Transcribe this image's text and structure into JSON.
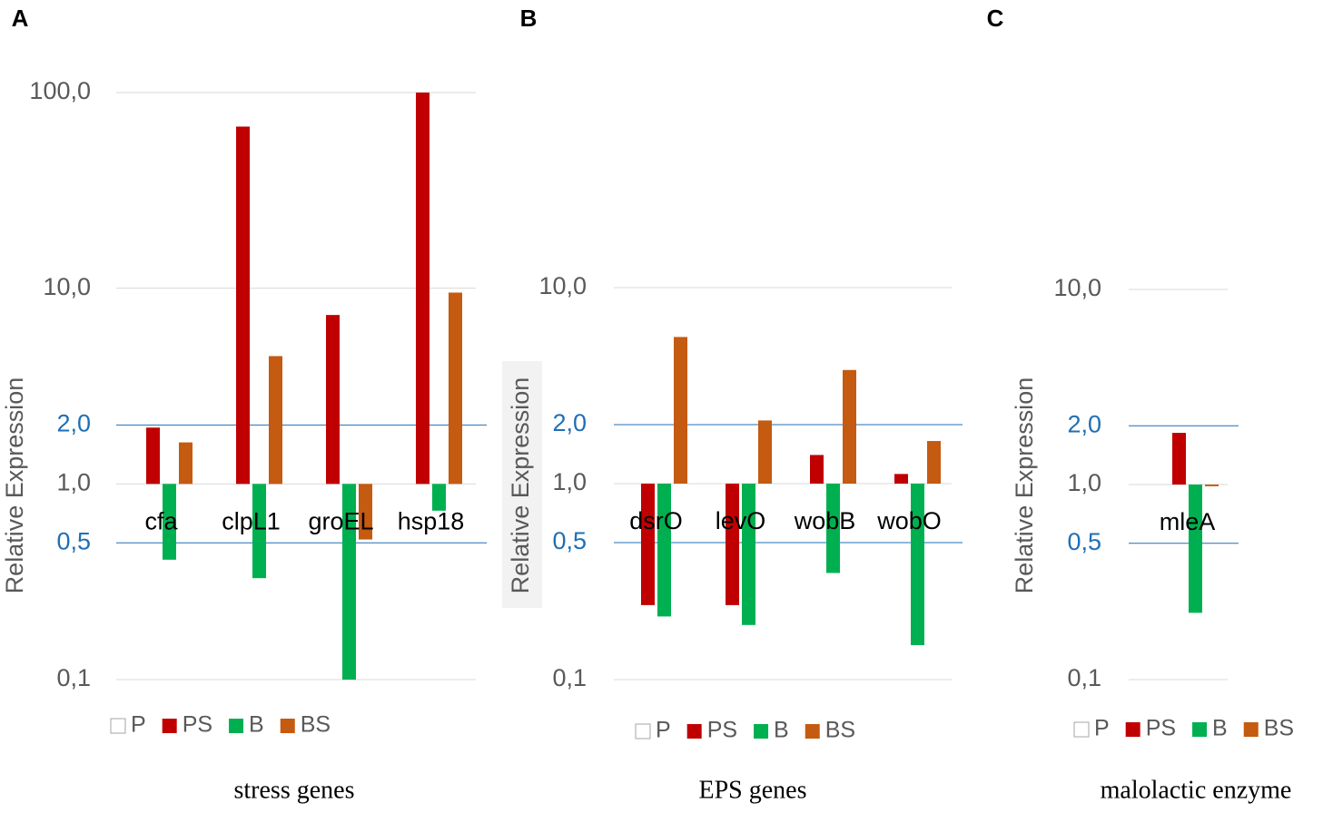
{
  "chart_data": [
    {
      "type": "bar",
      "panel": "A",
      "x_title": "stress genes",
      "y_title": "Relative Expression",
      "log_y": true,
      "grid": true,
      "categories": [
        "cfa",
        "clpL1",
        "groEL",
        "hsp18"
      ],
      "series": [
        {
          "name": "P",
          "color": "#ffffff",
          "values": [
            1,
            1,
            1,
            1
          ]
        },
        {
          "name": "PS",
          "color": "#c00000",
          "values": [
            1.94,
            67,
            7.3,
            100
          ]
        },
        {
          "name": "B",
          "color": "#00b050",
          "values": [
            0.41,
            0.33,
            0.1,
            0.73
          ]
        },
        {
          "name": "BS",
          "color": "#c55a11",
          "values": [
            1.63,
            4.5,
            0.52,
            9.5
          ]
        }
      ],
      "ylim": [
        0.1,
        100
      ],
      "yticks": [
        {
          "value": 0.1,
          "label": "0,1"
        },
        {
          "value": 0.5,
          "label": "0,5",
          "color": "#1f6fb5"
        },
        {
          "value": 1,
          "label": "1,0"
        },
        {
          "value": 2,
          "label": "2,0",
          "color": "#1f6fb5"
        },
        {
          "value": 10,
          "label": "10,0"
        },
        {
          "value": 100,
          "label": "100,0"
        }
      ]
    },
    {
      "type": "bar",
      "panel": "B",
      "x_title": "EPS genes",
      "y_title": "Relative Expression",
      "log_y": true,
      "grid": true,
      "categories": [
        "dsrO",
        "levO",
        "wobB",
        "wobO"
      ],
      "series": [
        {
          "name": "P",
          "color": "#ffffff",
          "values": [
            1,
            1,
            1,
            1
          ]
        },
        {
          "name": "PS",
          "color": "#c00000",
          "values": [
            0.24,
            0.24,
            1.4,
            1.12
          ]
        },
        {
          "name": "B",
          "color": "#00b050",
          "values": [
            0.21,
            0.19,
            0.35,
            0.15
          ]
        },
        {
          "name": "BS",
          "color": "#c55a11",
          "values": [
            5.6,
            2.1,
            3.8,
            1.65
          ]
        }
      ],
      "ylim": [
        0.1,
        10
      ],
      "yticks": [
        {
          "value": 0.1,
          "label": "0,1"
        },
        {
          "value": 0.5,
          "label": "0,5",
          "color": "#1f6fb5"
        },
        {
          "value": 1,
          "label": "1,0"
        },
        {
          "value": 2,
          "label": "2,0",
          "color": "#1f6fb5"
        },
        {
          "value": 10,
          "label": "10,0"
        }
      ]
    },
    {
      "type": "bar",
      "panel": "C",
      "x_title": "malolactic enzyme",
      "y_title": "Relative Expression",
      "log_y": true,
      "grid": true,
      "categories": [
        "mleA"
      ],
      "series": [
        {
          "name": "P",
          "color": "#ffffff",
          "values": [
            1
          ]
        },
        {
          "name": "PS",
          "color": "#c00000",
          "values": [
            1.84
          ]
        },
        {
          "name": "B",
          "color": "#00b050",
          "values": [
            0.22
          ]
        },
        {
          "name": "BS",
          "color": "#c55a11",
          "values": [
            0.98
          ]
        }
      ],
      "ylim": [
        0.1,
        10
      ],
      "yticks": [
        {
          "value": 0.1,
          "label": "0,1"
        },
        {
          "value": 0.5,
          "label": "0,5",
          "color": "#1f6fb5"
        },
        {
          "value": 1,
          "label": "1,0"
        },
        {
          "value": 2,
          "label": "2,0",
          "color": "#1f6fb5"
        },
        {
          "value": 10,
          "label": "10,0"
        }
      ]
    }
  ]
}
